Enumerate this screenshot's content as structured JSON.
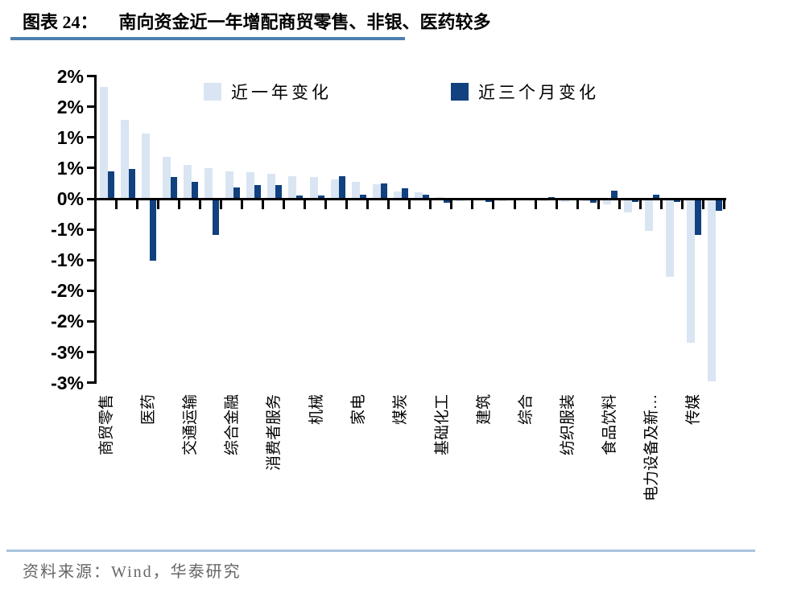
{
  "header": {
    "figure_label": "图表 24：",
    "title": "南向资金近一年增配商贸零售、非银、医药较多"
  },
  "footer": {
    "source": "资料来源：Wind，华泰研究"
  },
  "chart_data": {
    "type": "bar",
    "title": "南向资金近一年增配商贸零售、非银、医药较多",
    "unit": "%",
    "grid": false,
    "legend_position": "top-inside",
    "ylim": [
      -3.0,
      2.0
    ],
    "y_ticks": [
      2.0,
      1.5,
      1.0,
      0.5,
      0.0,
      -0.5,
      -1.0,
      -1.5,
      -2.0,
      -2.5,
      -3.0
    ],
    "y_tick_labels": [
      "2%",
      "2%",
      "1%",
      "1%",
      "0%",
      "-1%",
      "-1%",
      "-2%",
      "-2%",
      "-3%",
      "-3%"
    ],
    "x_label_interval": 2,
    "categories": [
      "商贸零售",
      "",
      "医药",
      "",
      "交通运输",
      "",
      "综合金融",
      "",
      "消费者服务",
      "",
      "机械",
      "",
      "家电",
      "",
      "煤炭",
      "",
      "基础化工",
      "",
      "建筑",
      "",
      "综合",
      "",
      "纺织服装",
      "",
      "食品饮料",
      "",
      "电力设备及新…",
      "",
      "传媒",
      ""
    ],
    "series": [
      {
        "name": "近一年变化",
        "color": "#d9e5f2",
        "values": [
          1.82,
          1.28,
          1.06,
          0.68,
          0.55,
          0.5,
          0.44,
          0.43,
          0.41,
          0.37,
          0.35,
          0.31,
          0.27,
          0.23,
          0.12,
          0.1,
          0.03,
          -0.02,
          -0.01,
          -0.02,
          -0.01,
          -0.02,
          -0.04,
          -0.03,
          -0.08,
          -0.21,
          -0.51,
          -1.26,
          -2.33,
          -2.97
        ]
      },
      {
        "name": "近三个月变化",
        "color": "#11417f",
        "values": [
          0.45,
          0.48,
          -1.0,
          0.36,
          0.28,
          -0.58,
          0.19,
          0.22,
          0.22,
          0.05,
          0.05,
          0.37,
          0.06,
          0.25,
          0.17,
          0.06,
          -0.05,
          0.0,
          -0.04,
          0.0,
          0.01,
          0.02,
          -0.01,
          -0.05,
          0.13,
          -0.04,
          0.06,
          -0.04,
          -0.58,
          -0.19
        ]
      }
    ]
  }
}
